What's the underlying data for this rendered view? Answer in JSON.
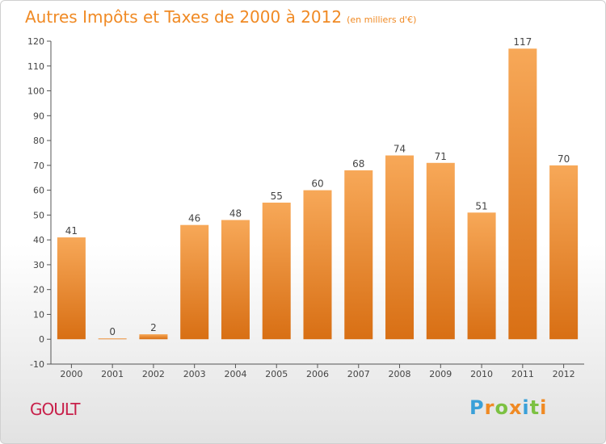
{
  "header": {
    "title": "Autres Impôts et Taxes de 2000 à 2012",
    "subtitle": "(en milliers d'€)"
  },
  "footer": {
    "city": "GOULT",
    "logo": {
      "letters": [
        "P",
        "r",
        "o",
        "x",
        "i",
        "t",
        "i"
      ],
      "colors": [
        "#3aa0d8",
        "#f08a24",
        "#7cc142",
        "#f08a24",
        "#3aa0d8",
        "#7cc142",
        "#f08a24"
      ]
    }
  },
  "colors": {
    "accent": "#f08a24",
    "bar_top": "#f7a858",
    "bar_bottom": "#d86f14",
    "city": "#c8204a"
  },
  "chart_data": {
    "type": "bar",
    "categories": [
      "2000",
      "2001",
      "2002",
      "2003",
      "2004",
      "2005",
      "2006",
      "2007",
      "2008",
      "2009",
      "2010",
      "2011",
      "2012"
    ],
    "values": [
      41,
      0,
      2,
      46,
      48,
      55,
      60,
      68,
      74,
      71,
      51,
      117,
      70
    ],
    "data_labels": [
      "41",
      "0",
      "2",
      "46",
      "48",
      "55",
      "60",
      "68",
      "74",
      "71",
      "51",
      "117",
      "70"
    ],
    "title": "Autres Impôts et Taxes de 2000 à 2012",
    "subtitle": "(en milliers d'€)",
    "ylim": [
      -10,
      120
    ],
    "yticks": [
      -10,
      0,
      10,
      20,
      30,
      40,
      50,
      60,
      70,
      80,
      90,
      100,
      110,
      120
    ],
    "ytick_labels": [
      "-10",
      "0",
      "10",
      "20",
      "30",
      "40",
      "50",
      "60",
      "70",
      "80",
      "90",
      "100",
      "110",
      "120"
    ],
    "grid": false
  }
}
